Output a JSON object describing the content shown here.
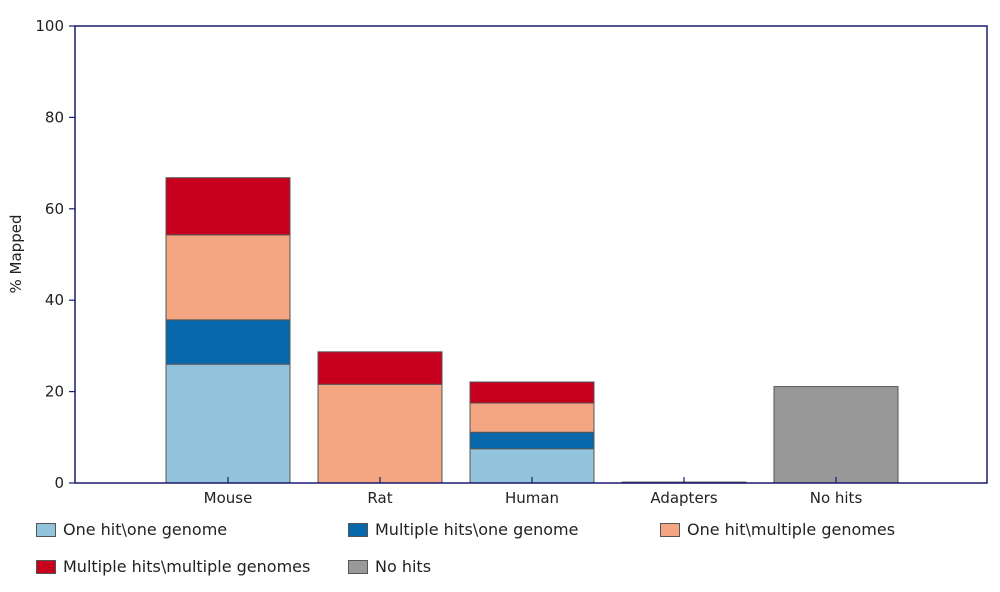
{
  "chart_data": {
    "type": "bar",
    "stacked": true,
    "ylabel": "% Mapped",
    "xlabel": "",
    "ylim": [
      0,
      100
    ],
    "yticks": [
      0,
      20,
      40,
      60,
      80,
      100
    ],
    "categories": [
      "Mouse",
      "Rat",
      "Human",
      "Adapters",
      "No hits"
    ],
    "series": [
      {
        "name": "One hit\\one genome",
        "color": "#93c4de",
        "values": [
          26,
          0,
          7.5,
          0,
          0
        ]
      },
      {
        "name": "Multiple hits\\one genome",
        "color": "#0868ac",
        "values": [
          9.7,
          0,
          3.6,
          0,
          0
        ]
      },
      {
        "name": "One hit\\multiple genomes",
        "color": "#f4a582",
        "values": [
          18.6,
          21.6,
          6.4,
          0,
          0
        ]
      },
      {
        "name": "Multiple hits\\multiple genomes",
        "color": "#c7001e",
        "values": [
          12.5,
          7.1,
          4.6,
          0,
          0
        ]
      },
      {
        "name": "No hits",
        "color": "#999999",
        "values": [
          0,
          0,
          0,
          0.2,
          21.1
        ]
      }
    ],
    "axis_color": "#1a1a6e",
    "grid": false,
    "legend_position": "bottom"
  }
}
